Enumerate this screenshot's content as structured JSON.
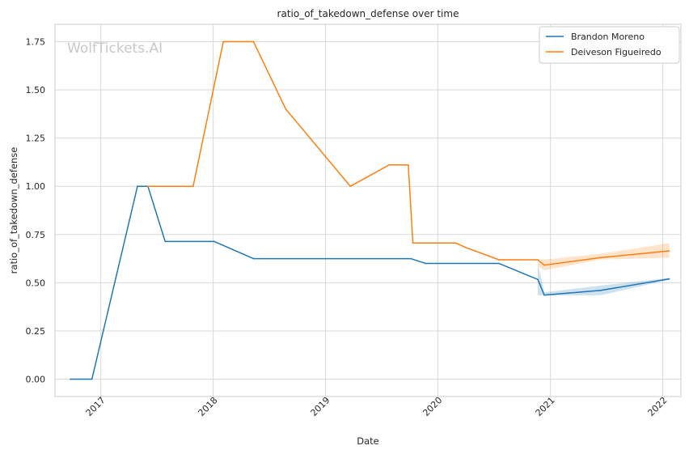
{
  "chart_data": {
    "type": "line",
    "title": "ratio_of_takedown_defense over time",
    "xlabel": "Date",
    "ylabel": "ratio_of_takedown_defense",
    "watermark": "WolfTickets.AI",
    "x_ticks": [
      "2017",
      "2018",
      "2019",
      "2020",
      "2021",
      "2022"
    ],
    "y_ticks": [
      "0.00",
      "0.25",
      "0.50",
      "0.75",
      "1.00",
      "1.25",
      "1.50",
      "1.75"
    ],
    "xlim": [
      "2016-08-05",
      "2022-03-01"
    ],
    "ylim": [
      -0.09,
      1.84
    ],
    "grid": true,
    "legend_position": "top-right",
    "series": [
      {
        "name": "Brandon Moreno",
        "color": "#1f77b4",
        "x": [
          "2016-09-24",
          "2016-12-03",
          "2017-04-30",
          "2017-06-03",
          "2017-07-29",
          "2018-01-04",
          "2018-05-12",
          "2019-10-05",
          "2019-11-23",
          "2020-07-18",
          "2020-11-21",
          "2020-12-12",
          "2021-06-12",
          "2022-01-22"
        ],
        "y": [
          0.0,
          0.0,
          1.0,
          1.0,
          0.714,
          0.714,
          0.625,
          0.625,
          0.6,
          0.6,
          0.517,
          0.436,
          0.46,
          0.52
        ],
        "band": {
          "x": [
            "2020-11-21",
            "2020-12-12",
            "2021-06-12",
            "2022-01-22"
          ],
          "upper": [
            0.6,
            0.45,
            0.485,
            0.525
          ],
          "lower": [
            0.435,
            0.435,
            0.435,
            0.515
          ]
        }
      },
      {
        "name": "Deiveson Figueiredo",
        "color": "#ff7f0e",
        "x": [
          "2017-06-03",
          "2017-10-28",
          "2018-02-03",
          "2018-05-12",
          "2018-08-25",
          "2019-03-23",
          "2019-07-27",
          "2019-09-27",
          "2019-10-12",
          "2020-02-29",
          "2020-03-30",
          "2020-07-18",
          "2020-11-21",
          "2020-12-12",
          "2021-06-12",
          "2022-01-22"
        ],
        "y": [
          1.0,
          1.0,
          1.75,
          1.75,
          1.4,
          1.0,
          1.111,
          1.111,
          0.706,
          0.706,
          0.684,
          0.619,
          0.619,
          0.591,
          0.63,
          0.665
        ],
        "band": {
          "x": [
            "2020-11-21",
            "2020-12-12",
            "2021-06-12",
            "2022-01-22"
          ],
          "upper": [
            0.62,
            0.62,
            0.65,
            0.705
          ],
          "lower": [
            0.585,
            0.565,
            0.62,
            0.63
          ]
        }
      }
    ]
  }
}
